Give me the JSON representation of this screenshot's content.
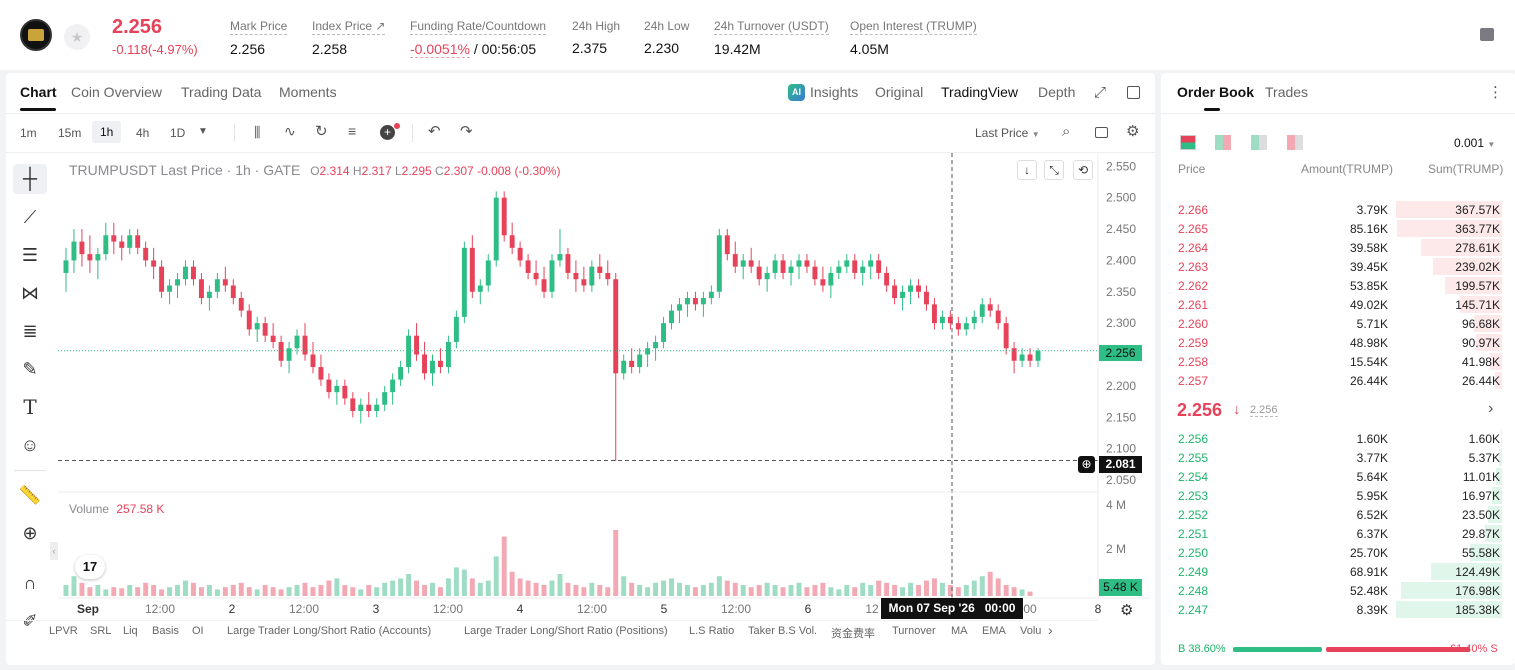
{
  "header": {
    "price": "2.256",
    "change": "-0.118(-4.97%)",
    "stats": [
      {
        "label": "Mark Price",
        "value": "2.256"
      },
      {
        "label": "Index Price ↗",
        "value": "2.258"
      },
      {
        "label": "Funding Rate/Countdown",
        "value_neg": "-0.0051%",
        "value": " / 00:56:05"
      },
      {
        "label": "24h High",
        "value": "2.375"
      },
      {
        "label": "24h Low",
        "value": "2.230"
      },
      {
        "label": "24h Turnover (USDT)",
        "value": "19.42M"
      },
      {
        "label": "Open Interest (TRUMP)",
        "value": "4.05M"
      }
    ]
  },
  "chart_tabs": {
    "chart": "Chart",
    "coin_overview": "Coin Overview",
    "trading_data": "Trading Data",
    "moments": "Moments",
    "insights": "Insights",
    "original": "Original",
    "tradingview": "TradingView",
    "depth": "Depth"
  },
  "toolbar": {
    "intervals": [
      "1m",
      "15m",
      "1h",
      "4h",
      "1D"
    ],
    "selected_interval": "1h",
    "price_type": "Last Price"
  },
  "legend": {
    "title": "TRUMPUSDT Last Price · 1h · GATE",
    "o_label": "O",
    "o": "2.314",
    "h_label": "H",
    "h": "2.317",
    "l_label": "L",
    "l": "2.295",
    "c_label": "C",
    "c": "2.307",
    "chg": "-0.008 (-0.30%)"
  },
  "volume_legend": {
    "label": "Volume",
    "value": "257.58 K"
  },
  "price_axis": [
    "2.550",
    "2.500",
    "2.450",
    "2.400",
    "2.350",
    "2.300",
    "2.250",
    "2.200",
    "2.150",
    "2.100",
    "2.050"
  ],
  "price_tag": "2.256",
  "cross_tag": "2.081",
  "volume_axis": [
    "4 M",
    "2 M"
  ],
  "volume_tag": "5.48 K",
  "time_axis": [
    "Sep",
    "12:00",
    "2",
    "12:00",
    "3",
    "12:00",
    "4",
    "12:00",
    "5",
    "12:00",
    "6",
    "12",
    "00",
    "8"
  ],
  "cross_time": "Mon 07 Sep '26   00:00",
  "tv_logo": "17",
  "indicators": [
    "LPVR",
    "SRL",
    "Liq",
    "Basis",
    "OI",
    "Large Trader Long/Short Ratio (Accounts)",
    "Large Trader Long/Short Ratio (Positions)",
    "L.S Ratio",
    "Taker B.S Vol.",
    "资金费率",
    "Turnover",
    "MA",
    "EMA",
    "Volu"
  ],
  "chart_data": {
    "type": "candlestick",
    "ylim": [
      2.05,
      2.56
    ],
    "last_price": 2.256,
    "crosshair_price": 2.081,
    "candles": [
      [
        2.38,
        2.42,
        2.35,
        2.4
      ],
      [
        2.4,
        2.45,
        2.38,
        2.43
      ],
      [
        2.43,
        2.45,
        2.39,
        2.41
      ],
      [
        2.41,
        2.44,
        2.38,
        2.4
      ],
      [
        2.4,
        2.42,
        2.37,
        2.41
      ],
      [
        2.41,
        2.46,
        2.4,
        2.44
      ],
      [
        2.44,
        2.46,
        2.41,
        2.43
      ],
      [
        2.43,
        2.44,
        2.4,
        2.42
      ],
      [
        2.42,
        2.45,
        2.41,
        2.44
      ],
      [
        2.44,
        2.45,
        2.41,
        2.42
      ],
      [
        2.42,
        2.43,
        2.39,
        2.4
      ],
      [
        2.4,
        2.42,
        2.37,
        2.39
      ],
      [
        2.39,
        2.4,
        2.34,
        2.35
      ],
      [
        2.35,
        2.37,
        2.33,
        2.36
      ],
      [
        2.36,
        2.38,
        2.34,
        2.37
      ],
      [
        2.37,
        2.4,
        2.36,
        2.39
      ],
      [
        2.39,
        2.4,
        2.36,
        2.37
      ],
      [
        2.37,
        2.38,
        2.33,
        2.34
      ],
      [
        2.34,
        2.36,
        2.32,
        2.35
      ],
      [
        2.35,
        2.38,
        2.34,
        2.37
      ],
      [
        2.37,
        2.39,
        2.35,
        2.36
      ],
      [
        2.36,
        2.37,
        2.33,
        2.34
      ],
      [
        2.34,
        2.35,
        2.31,
        2.32
      ],
      [
        2.32,
        2.33,
        2.28,
        2.29
      ],
      [
        2.29,
        2.31,
        2.27,
        2.3
      ],
      [
        2.3,
        2.31,
        2.27,
        2.28
      ],
      [
        2.28,
        2.3,
        2.26,
        2.27
      ],
      [
        2.27,
        2.28,
        2.23,
        2.24
      ],
      [
        2.24,
        2.27,
        2.22,
        2.26
      ],
      [
        2.26,
        2.29,
        2.25,
        2.28
      ],
      [
        2.28,
        2.3,
        2.24,
        2.25
      ],
      [
        2.25,
        2.27,
        2.22,
        2.23
      ],
      [
        2.23,
        2.25,
        2.2,
        2.21
      ],
      [
        2.21,
        2.22,
        2.18,
        2.19
      ],
      [
        2.19,
        2.21,
        2.17,
        2.2
      ],
      [
        2.2,
        2.21,
        2.17,
        2.18
      ],
      [
        2.18,
        2.19,
        2.15,
        2.16
      ],
      [
        2.16,
        2.18,
        2.14,
        2.17
      ],
      [
        2.17,
        2.19,
        2.15,
        2.16
      ],
      [
        2.16,
        2.18,
        2.15,
        2.17
      ],
      [
        2.17,
        2.2,
        2.16,
        2.19
      ],
      [
        2.19,
        2.22,
        2.17,
        2.21
      ],
      [
        2.21,
        2.24,
        2.2,
        2.23
      ],
      [
        2.23,
        2.29,
        2.22,
        2.28
      ],
      [
        2.28,
        2.3,
        2.24,
        2.25
      ],
      [
        2.25,
        2.27,
        2.21,
        2.22
      ],
      [
        2.22,
        2.25,
        2.2,
        2.24
      ],
      [
        2.24,
        2.26,
        2.22,
        2.23
      ],
      [
        2.23,
        2.28,
        2.22,
        2.27
      ],
      [
        2.27,
        2.32,
        2.26,
        2.31
      ],
      [
        2.31,
        2.43,
        2.3,
        2.42
      ],
      [
        2.42,
        2.44,
        2.34,
        2.35
      ],
      [
        2.35,
        2.37,
        2.33,
        2.36
      ],
      [
        2.36,
        2.41,
        2.35,
        2.4
      ],
      [
        2.4,
        2.51,
        2.39,
        2.5
      ],
      [
        2.5,
        2.51,
        2.43,
        2.44
      ],
      [
        2.44,
        2.46,
        2.41,
        2.42
      ],
      [
        2.42,
        2.43,
        2.39,
        2.4
      ],
      [
        2.4,
        2.41,
        2.37,
        2.38
      ],
      [
        2.38,
        2.4,
        2.36,
        2.37
      ],
      [
        2.37,
        2.39,
        2.34,
        2.35
      ],
      [
        2.35,
        2.41,
        2.34,
        2.4
      ],
      [
        2.4,
        2.45,
        2.39,
        2.41
      ],
      [
        2.41,
        2.42,
        2.37,
        2.38
      ],
      [
        2.38,
        2.4,
        2.35,
        2.37
      ],
      [
        2.37,
        2.39,
        2.35,
        2.36
      ],
      [
        2.36,
        2.4,
        2.35,
        2.39
      ],
      [
        2.39,
        2.41,
        2.37,
        2.38
      ],
      [
        2.38,
        2.4,
        2.36,
        2.37
      ],
      [
        2.37,
        2.38,
        2.08,
        2.22
      ],
      [
        2.22,
        2.25,
        2.21,
        2.24
      ],
      [
        2.24,
        2.26,
        2.22,
        2.23
      ],
      [
        2.23,
        2.26,
        2.22,
        2.25
      ],
      [
        2.25,
        2.27,
        2.23,
        2.26
      ],
      [
        2.26,
        2.28,
        2.24,
        2.27
      ],
      [
        2.27,
        2.31,
        2.26,
        2.3
      ],
      [
        2.3,
        2.33,
        2.29,
        2.32
      ],
      [
        2.32,
        2.34,
        2.3,
        2.33
      ],
      [
        2.33,
        2.35,
        2.31,
        2.34
      ],
      [
        2.34,
        2.35,
        2.32,
        2.33
      ],
      [
        2.33,
        2.35,
        2.31,
        2.34
      ],
      [
        2.34,
        2.36,
        2.33,
        2.35
      ],
      [
        2.35,
        2.45,
        2.34,
        2.44
      ],
      [
        2.44,
        2.45,
        2.4,
        2.41
      ],
      [
        2.41,
        2.43,
        2.38,
        2.39
      ],
      [
        2.39,
        2.41,
        2.37,
        2.4
      ],
      [
        2.4,
        2.42,
        2.38,
        2.39
      ],
      [
        2.39,
        2.4,
        2.36,
        2.37
      ],
      [
        2.37,
        2.39,
        2.35,
        2.38
      ],
      [
        2.38,
        2.41,
        2.37,
        2.4
      ],
      [
        2.4,
        2.41,
        2.37,
        2.38
      ],
      [
        2.38,
        2.4,
        2.36,
        2.39
      ],
      [
        2.39,
        2.41,
        2.37,
        2.4
      ],
      [
        2.4,
        2.41,
        2.38,
        2.39
      ],
      [
        2.39,
        2.4,
        2.36,
        2.37
      ],
      [
        2.37,
        2.39,
        2.35,
        2.36
      ],
      [
        2.36,
        2.39,
        2.34,
        2.38
      ],
      [
        2.38,
        2.4,
        2.37,
        2.39
      ],
      [
        2.39,
        2.41,
        2.38,
        2.4
      ],
      [
        2.4,
        2.41,
        2.37,
        2.38
      ],
      [
        2.38,
        2.4,
        2.36,
        2.39
      ],
      [
        2.39,
        2.41,
        2.37,
        2.4
      ],
      [
        2.4,
        2.41,
        2.37,
        2.38
      ],
      [
        2.38,
        2.39,
        2.35,
        2.36
      ],
      [
        2.36,
        2.37,
        2.33,
        2.34
      ],
      [
        2.34,
        2.36,
        2.32,
        2.35
      ],
      [
        2.35,
        2.37,
        2.33,
        2.36
      ],
      [
        2.36,
        2.37,
        2.34,
        2.35
      ],
      [
        2.35,
        2.36,
        2.32,
        2.33
      ],
      [
        2.33,
        2.34,
        2.29,
        2.3
      ],
      [
        2.3,
        2.32,
        2.29,
        2.31
      ],
      [
        2.31,
        2.32,
        2.29,
        2.3
      ],
      [
        2.3,
        2.31,
        2.28,
        2.29
      ],
      [
        2.29,
        2.31,
        2.28,
        2.3
      ],
      [
        2.3,
        2.32,
        2.29,
        2.31
      ],
      [
        2.31,
        2.34,
        2.3,
        2.33
      ],
      [
        2.33,
        2.34,
        2.31,
        2.32
      ],
      [
        2.32,
        2.33,
        2.29,
        2.3
      ],
      [
        2.3,
        2.31,
        2.25,
        2.26
      ],
      [
        2.26,
        2.27,
        2.22,
        2.24
      ],
      [
        2.24,
        2.26,
        2.23,
        2.25
      ],
      [
        2.25,
        2.26,
        2.23,
        2.24
      ],
      [
        2.24,
        2.26,
        2.23,
        2.256
      ]
    ],
    "volumes_m": [
      0.5,
      0.9,
      0.6,
      0.4,
      0.5,
      0.3,
      0.4,
      0.35,
      0.5,
      0.4,
      0.6,
      0.5,
      0.3,
      0.4,
      0.5,
      0.7,
      0.6,
      0.4,
      0.5,
      0.3,
      0.4,
      0.5,
      0.6,
      0.4,
      0.3,
      0.5,
      0.4,
      0.3,
      0.4,
      0.5,
      0.6,
      0.4,
      0.5,
      0.7,
      0.8,
      0.5,
      0.4,
      0.3,
      0.5,
      0.4,
      0.6,
      0.7,
      0.8,
      1.0,
      0.7,
      0.5,
      0.6,
      0.4,
      0.8,
      1.3,
      1.2,
      0.8,
      0.6,
      0.7,
      1.8,
      2.7,
      1.1,
      0.8,
      0.7,
      0.6,
      0.5,
      0.7,
      1.0,
      0.6,
      0.5,
      0.4,
      0.6,
      0.5,
      0.4,
      3.0,
      0.9,
      0.6,
      0.5,
      0.4,
      0.6,
      0.7,
      0.8,
      0.6,
      0.5,
      0.4,
      0.5,
      0.6,
      0.9,
      0.7,
      0.6,
      0.5,
      0.4,
      0.5,
      0.6,
      0.5,
      0.4,
      0.5,
      0.6,
      0.4,
      0.5,
      0.6,
      0.4,
      0.3,
      0.5,
      0.4,
      0.6,
      0.5,
      0.7,
      0.6,
      0.5,
      0.4,
      0.6,
      0.5,
      0.7,
      0.8,
      0.6,
      0.5,
      0.4,
      0.5,
      0.7,
      0.9,
      1.1,
      0.8,
      0.5,
      0.4,
      0.3,
      0.2
    ]
  },
  "order_book": {
    "tabs": [
      "Order Book",
      "Trades"
    ],
    "precision": "0.001",
    "headers": {
      "price": "Price",
      "amount": "Amount(TRUMP)",
      "sum": "Sum(TRUMP)"
    },
    "asks": [
      {
        "price": "2.266",
        "amount": "3.79K",
        "sum": "367.57K",
        "depth": 1.0
      },
      {
        "price": "2.265",
        "amount": "85.16K",
        "sum": "363.77K",
        "depth": 0.99
      },
      {
        "price": "2.264",
        "amount": "39.58K",
        "sum": "278.61K",
        "depth": 0.76
      },
      {
        "price": "2.263",
        "amount": "39.45K",
        "sum": "239.02K",
        "depth": 0.65
      },
      {
        "price": "2.262",
        "amount": "53.85K",
        "sum": "199.57K",
        "depth": 0.54
      },
      {
        "price": "2.261",
        "amount": "49.02K",
        "sum": "145.71K",
        "depth": 0.4
      },
      {
        "price": "2.260",
        "amount": "5.71K",
        "sum": "96.68K",
        "depth": 0.26
      },
      {
        "price": "2.259",
        "amount": "48.98K",
        "sum": "90.97K",
        "depth": 0.25
      },
      {
        "price": "2.258",
        "amount": "15.54K",
        "sum": "41.98K",
        "depth": 0.11
      },
      {
        "price": "2.257",
        "amount": "26.44K",
        "sum": "26.44K",
        "depth": 0.07
      }
    ],
    "mid_price": "2.256",
    "mid_arrow": "↓",
    "mid_mark": "2.256",
    "bids": [
      {
        "price": "2.256",
        "amount": "1.60K",
        "sum": "1.60K",
        "depth": 0.01
      },
      {
        "price": "2.255",
        "amount": "3.77K",
        "sum": "5.37K",
        "depth": 0.03
      },
      {
        "price": "2.254",
        "amount": "5.64K",
        "sum": "11.01K",
        "depth": 0.06
      },
      {
        "price": "2.253",
        "amount": "5.95K",
        "sum": "16.97K",
        "depth": 0.09
      },
      {
        "price": "2.252",
        "amount": "6.52K",
        "sum": "23.50K",
        "depth": 0.13
      },
      {
        "price": "2.251",
        "amount": "6.37K",
        "sum": "29.87K",
        "depth": 0.16
      },
      {
        "price": "2.250",
        "amount": "25.70K",
        "sum": "55.58K",
        "depth": 0.3
      },
      {
        "price": "2.249",
        "amount": "68.91K",
        "sum": "124.49K",
        "depth": 0.67
      },
      {
        "price": "2.248",
        "amount": "52.48K",
        "sum": "176.98K",
        "depth": 0.95
      },
      {
        "price": "2.247",
        "amount": "8.39K",
        "sum": "185.38K",
        "depth": 1.0
      }
    ],
    "buy_label": "B 38.60%",
    "sell_label": "61.40% S",
    "buy_ratio": 0.386
  },
  "colors": {
    "up": "#2ebd85",
    "down": "#e6435a",
    "up_vol": "#9fdcc4",
    "down_vol": "#f2a9b3"
  }
}
